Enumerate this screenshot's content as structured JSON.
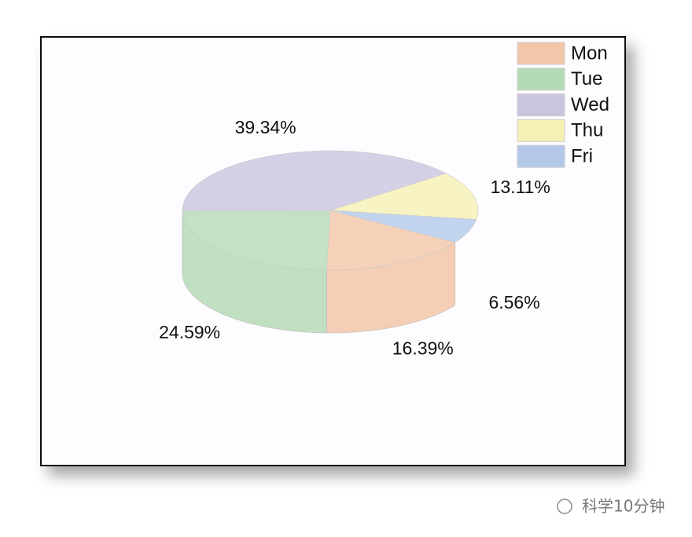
{
  "chart_data": {
    "type": "pie",
    "categories": [
      "Mon",
      "Tue",
      "Wed",
      "Thu",
      "Fri"
    ],
    "values": [
      16.39,
      24.59,
      39.34,
      13.11,
      6.56
    ],
    "value_labels": [
      "16.39%",
      "24.59%",
      "39.34%",
      "13.11%",
      "6.56%"
    ],
    "colors": [
      "#f2c6a8",
      "#b5dab6",
      "#cbc4de",
      "#f5f0b4",
      "#b3c8e8"
    ],
    "legend": "upper right"
  },
  "watermark": "科学10分钟"
}
